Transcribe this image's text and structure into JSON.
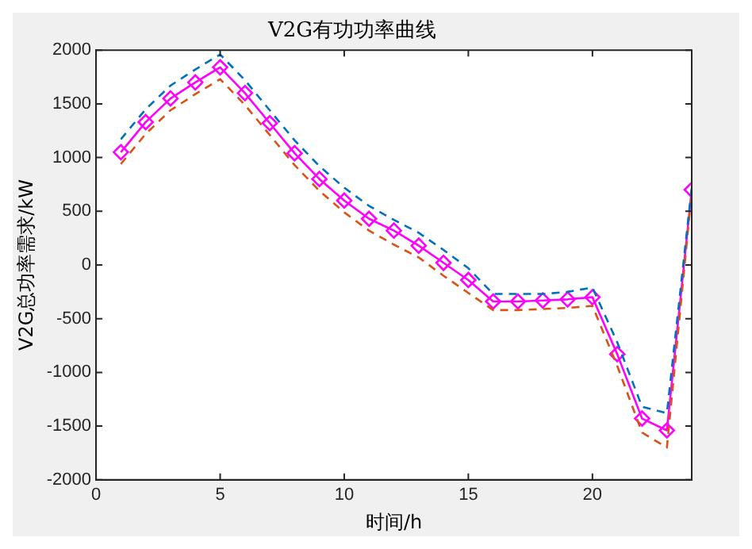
{
  "chart_data": {
    "type": "line",
    "title": "V2G有功功率曲线",
    "xlabel": "时间/h",
    "ylabel": "V2G总功率需求/kW",
    "x": [
      1,
      2,
      3,
      4,
      5,
      6,
      7,
      8,
      9,
      10,
      11,
      12,
      13,
      14,
      15,
      16,
      17,
      18,
      19,
      20,
      21,
      22,
      23,
      24
    ],
    "xlim": [
      0,
      24
    ],
    "xticks": [
      0,
      5,
      10,
      15,
      20
    ],
    "ylim": [
      -2000,
      2000
    ],
    "yticks": [
      -2000,
      -1500,
      -1000,
      -500,
      0,
      500,
      1000,
      1500,
      2000
    ],
    "grid": false,
    "legend": false,
    "marker": "diamond",
    "line_style": "solid",
    "series": [
      {
        "color": "#0072bd",
        "line_style": "dashed",
        "marker": "none",
        "values": [
          1170,
          1450,
          1670,
          1820,
          1960,
          1720,
          1440,
          1160,
          920,
          720,
          550,
          420,
          300,
          140,
          -30,
          -270,
          -270,
          -270,
          -250,
          -210,
          -720,
          -1320,
          -1380,
          720
        ]
      },
      {
        "color": "#d95319",
        "line_style": "dashed",
        "marker": "none",
        "values": [
          940,
          1220,
          1440,
          1590,
          1730,
          1490,
          1210,
          930,
          690,
          490,
          320,
          190,
          70,
          -100,
          -260,
          -420,
          -420,
          -410,
          -400,
          -380,
          -940,
          -1560,
          -1700,
          680
        ]
      },
      {
        "color": "#ff00ff",
        "values": [
          1050,
          1330,
          1550,
          1700,
          1840,
          1600,
          1320,
          1040,
          800,
          600,
          430,
          320,
          180,
          20,
          -140,
          -340,
          -340,
          -330,
          -320,
          -300,
          -830,
          -1430,
          -1540,
          700
        ]
      }
    ]
  }
}
